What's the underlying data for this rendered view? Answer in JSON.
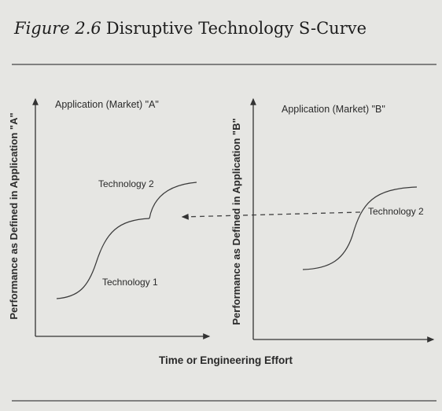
{
  "header": {
    "figure_label": "Figure 2.6",
    "title": "Disruptive Technology S-Curve"
  },
  "panels": [
    {
      "title": "Application (Market) \"A\"",
      "y_axis_label": "Performance as Defined in Application \"A\"",
      "curve_labels": [
        "Technology 2",
        "Technology 1"
      ]
    },
    {
      "title": "Application (Market) \"B\"",
      "y_axis_label": "Performance as Defined in Application \"B\"",
      "curve_labels": [
        "Technology 2"
      ]
    }
  ],
  "x_axis_label": "Time or Engineering Effort"
}
